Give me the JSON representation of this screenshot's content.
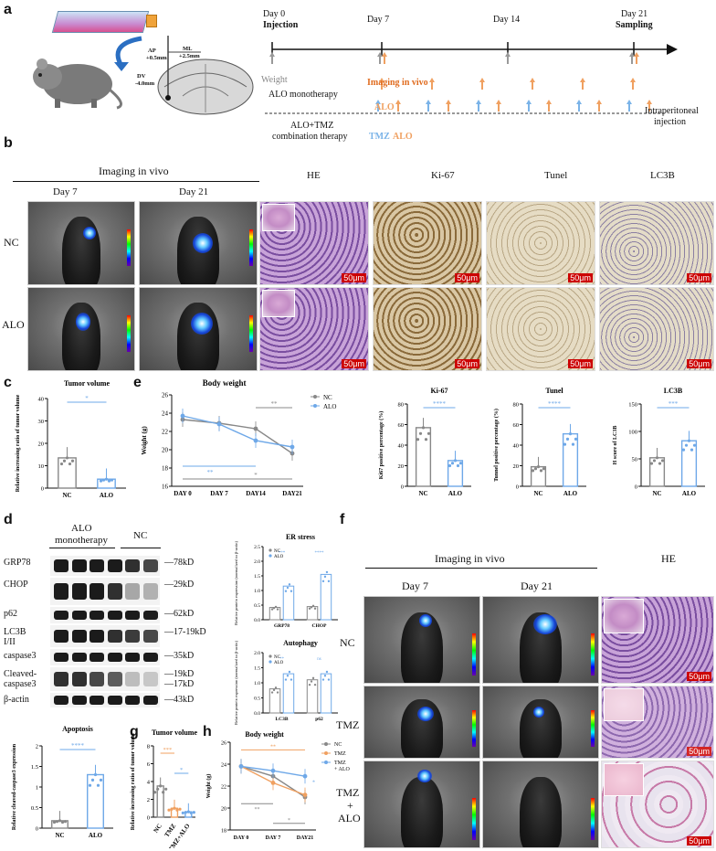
{
  "panels": {
    "a": "a",
    "b": "b",
    "c": "c",
    "d": "d",
    "e": "e",
    "f": "f",
    "g": "g",
    "h": "h"
  },
  "a": {
    "ap": "AP",
    "ap_val": "+0.5mm",
    "ml": "ML",
    "ml_val": "+2.5mm",
    "dv": "DV",
    "dv_val": "-4.0mm",
    "day0": "Day 0",
    "injection": "Injection",
    "day7": "Day 7",
    "day14": "Day 14",
    "day21": "Day 21",
    "sampling": "Sampling",
    "weight": "Weight",
    "imaging": "Imaging in vivo",
    "mono": "ALO monotherapy",
    "alo": "ALO",
    "combo1": "ALO+TMZ",
    "combo2": "combination therapy",
    "tmz": "TMZ",
    "alo2": "ALO",
    "ip1": "Intraperitoneal",
    "ip2": "injection",
    "colors": {
      "weight": "#999999",
      "alo": "#f0a060",
      "tmz": "#7ab3e8"
    }
  },
  "b": {
    "imaging_title": "Imaging in vivo",
    "day7": "Day 7",
    "day21": "Day 21",
    "he": "HE",
    "ki67": "Ki-67",
    "tunel": "Tunel",
    "lc3b": "LC3B",
    "nc": "NC",
    "alo": "ALO",
    "scale": "50μm"
  },
  "c": {
    "chart_data": {
      "type": "bar",
      "title": "Tumor volume",
      "ylabel": "Relative increasing ratio of tumor volume",
      "categories": [
        "NC",
        "ALO"
      ],
      "values": [
        13.5,
        4
      ],
      "ylim": [
        0,
        40
      ],
      "yticks": [
        0,
        10,
        20,
        30,
        40
      ],
      "sig": "*"
    }
  },
  "e": {
    "chart_data": {
      "type": "line",
      "title": "Body weight",
      "ylabel": "Weight (g)",
      "x": [
        "DAY 0",
        "DAY 7",
        "DAY14",
        "DAY21"
      ],
      "ylim": [
        16,
        26
      ],
      "yticks": [
        16,
        18,
        20,
        22,
        24,
        26
      ],
      "series": [
        {
          "name": "NC",
          "values": [
            23.3,
            22.9,
            22.3,
            19.6
          ],
          "color": "#888888"
        },
        {
          "name": "ALO",
          "values": [
            23.7,
            22.8,
            21.0,
            20.3
          ],
          "color": "#6ea8e8"
        }
      ],
      "sig1": "**",
      "sig2": "**",
      "sig3": "*"
    }
  },
  "ki67": {
    "chart_data": {
      "type": "bar",
      "title": "Ki-67",
      "ylabel": "Ki67 positive percentage (%)",
      "categories": [
        "NC",
        "ALO"
      ],
      "values": [
        57,
        25
      ],
      "ylim": [
        0,
        80
      ],
      "yticks": [
        0,
        20,
        40,
        60,
        80
      ],
      "sig": "****"
    }
  },
  "tunel": {
    "chart_data": {
      "type": "bar",
      "title": "Tunel",
      "ylabel": "Tunnel positive percentage (%)",
      "categories": [
        "NC",
        "ALO"
      ],
      "values": [
        19,
        51
      ],
      "ylim": [
        0,
        80
      ],
      "yticks": [
        0,
        20,
        40,
        60,
        80
      ],
      "sig": "****"
    }
  },
  "lc3b": {
    "chart_data": {
      "type": "bar",
      "title": "LC3B",
      "ylabel": "H score of LC3B",
      "categories": [
        "NC",
        "ALO"
      ],
      "values": [
        52,
        83
      ],
      "ylim": [
        0,
        150
      ],
      "yticks": [
        0,
        50,
        100,
        150
      ],
      "sig": "***"
    }
  },
  "d": {
    "alo_mono1": "ALO",
    "alo_mono2": "monotherapy",
    "nc": "NC",
    "proteins": [
      "GRP78",
      "CHOP",
      "p62",
      "LC3B",
      "I/II",
      "caspase3",
      "Cleaved-",
      "caspase3",
      "β-actin"
    ],
    "sizes": [
      "78kD",
      "29kD",
      "62kD",
      "17-19kD",
      "35kD",
      "19kD",
      "17kD",
      "43kD"
    ],
    "er_chart": {
      "type": "bar",
      "title": "ER stress",
      "ylabel": "Relative protein expression (normalized to β-actin)",
      "categories": [
        "GRP78",
        "CHOP"
      ],
      "series": [
        {
          "name": "NC",
          "values": [
            0.42,
            0.45
          ]
        },
        {
          "name": "ALO",
          "values": [
            1.15,
            1.55
          ]
        }
      ],
      "ylim": [
        0,
        2.5
      ],
      "yticks": [
        0.0,
        0.5,
        1.0,
        1.5,
        2.0,
        2.5
      ],
      "sig": [
        "***",
        "****"
      ]
    },
    "auto_chart": {
      "type": "bar",
      "title": "Autophagy",
      "ylabel": "Relative protein expression (normalized to β-actin)",
      "categories": [
        "LC3B",
        "p62"
      ],
      "series": [
        {
          "name": "NC",
          "values": [
            0.8,
            1.1
          ]
        },
        {
          "name": "ALO",
          "values": [
            1.3,
            1.3
          ]
        }
      ],
      "ylim": [
        0,
        2.0
      ],
      "yticks": [
        0.0,
        0.5,
        1.0,
        1.5,
        2.0
      ],
      "sig": [
        "**",
        "ns"
      ]
    },
    "apop_chart": {
      "type": "bar",
      "title": "Apoptosis",
      "ylabel": "Relative cleaved-caspase3 expression",
      "categories": [
        "NC",
        "ALO"
      ],
      "values": [
        0.18,
        1.3
      ],
      "ylim": [
        0,
        2.0
      ],
      "yticks": [
        0.0,
        0.5,
        1.0,
        1.5,
        2.0
      ],
      "sig": "****"
    }
  },
  "g": {
    "chart_data": {
      "type": "bar",
      "title": "Tumor volume",
      "ylabel": "Relative increasing ratio of tumor volume",
      "categories": [
        "NC",
        "TMZ",
        "TMZ+ALO"
      ],
      "values": [
        3.5,
        1.0,
        0.6
      ],
      "ylim": [
        0,
        8
      ],
      "yticks": [
        0,
        2,
        4,
        6,
        8
      ],
      "sig": [
        "***",
        "*"
      ]
    }
  },
  "h": {
    "chart_data": {
      "type": "line",
      "title": "Body weight",
      "ylabel": "Weight (g)",
      "x": [
        "DAY 0",
        "DAY 7",
        "DAY21"
      ],
      "ylim": [
        18,
        26
      ],
      "yticks": [
        18,
        20,
        22,
        24,
        26
      ],
      "series": [
        {
          "name": "NC",
          "values": [
            23.8,
            22.9,
            21.0
          ],
          "color": "#888888"
        },
        {
          "name": "TMZ",
          "values": [
            23.8,
            22.3,
            21.2
          ],
          "color": "#f0a060"
        },
        {
          "name": "TMZ + ALO",
          "values": [
            23.8,
            23.4,
            22.9
          ],
          "color": "#6ea8e8"
        }
      ],
      "legend_tmzalo1": "TMZ",
      "legend_tmzalo2": "+ ALO",
      "sig": [
        "**",
        "**",
        "*",
        "*"
      ]
    }
  },
  "f": {
    "imaging_title": "Imaging in vivo",
    "day7": "Day 7",
    "day21": "Day 21",
    "he": "HE",
    "nc": "NC",
    "tmz": "TMZ",
    "tmzalo1": "TMZ",
    "tmzalo2": "+",
    "tmzalo3": "ALO",
    "scale": "50μm"
  }
}
